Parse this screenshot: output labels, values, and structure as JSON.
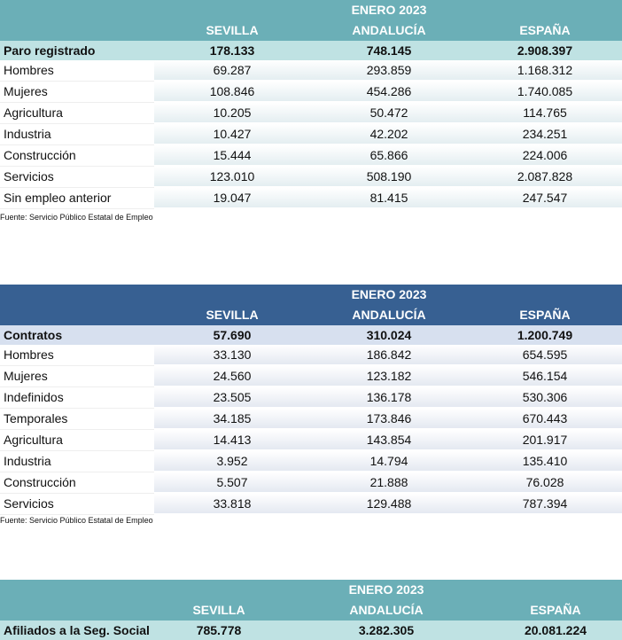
{
  "paro": {
    "period": "ENERO 2023",
    "columns": [
      "SEVILLA",
      "ANDALUCÍA",
      "ESPAÑA"
    ],
    "total": {
      "label": "Paro registrado",
      "values": [
        "178.133",
        "748.145",
        "2.908.397"
      ]
    },
    "rows": [
      {
        "label": "Hombres",
        "values": [
          "69.287",
          "293.859",
          "1.168.312"
        ]
      },
      {
        "label": "Mujeres",
        "values": [
          "108.846",
          "454.286",
          "1.740.085"
        ]
      },
      {
        "label": "Agricultura",
        "values": [
          "10.205",
          "50.472",
          "114.765"
        ]
      },
      {
        "label": "Industria",
        "values": [
          "10.427",
          "42.202",
          "234.251"
        ]
      },
      {
        "label": "Construcción",
        "values": [
          "15.444",
          "65.866",
          "224.006"
        ]
      },
      {
        "label": "Servicios",
        "values": [
          "123.010",
          "508.190",
          "2.087.828"
        ]
      },
      {
        "label": "Sin empleo anterior",
        "values": [
          "19.047",
          "81.415",
          "247.547"
        ]
      }
    ],
    "source": "Fuente: Servicio Público Estatal de Empleo"
  },
  "contratos": {
    "period": "ENERO 2023",
    "columns": [
      "SEVILLA",
      "ANDALUCÍA",
      "ESPAÑA"
    ],
    "total": {
      "label": "Contratos",
      "values": [
        "57.690",
        "310.024",
        "1.200.749"
      ]
    },
    "rows": [
      {
        "label": "Hombres",
        "values": [
          "33.130",
          "186.842",
          "654.595"
        ]
      },
      {
        "label": "Mujeres",
        "values": [
          "24.560",
          "123.182",
          "546.154"
        ]
      },
      {
        "label": "Indefinidos",
        "values": [
          "23.505",
          "136.178",
          "530.306"
        ]
      },
      {
        "label": "Temporales",
        "values": [
          "34.185",
          "173.846",
          "670.443"
        ]
      },
      {
        "label": "Agricultura",
        "values": [
          "14.413",
          "143.854",
          "201.917"
        ]
      },
      {
        "label": "Industria",
        "values": [
          "3.952",
          "14.794",
          "135.410"
        ]
      },
      {
        "label": "Construcción",
        "values": [
          "5.507",
          "21.888",
          "76.028"
        ]
      },
      {
        "label": "Servicios",
        "values": [
          "33.818",
          "129.488",
          "787.394"
        ]
      }
    ],
    "source": "Fuente: Servicio Público Estatal de Empleo"
  },
  "afiliados": {
    "period": "ENERO 2023",
    "columns": [
      "SEVILLA",
      "ANDALUCÍA",
      "ESPAÑA"
    ],
    "total": {
      "label": "Afiliados a la Seg. Social",
      "values": [
        "785.778",
        "3.282.305",
        "20.081.224"
      ]
    }
  }
}
